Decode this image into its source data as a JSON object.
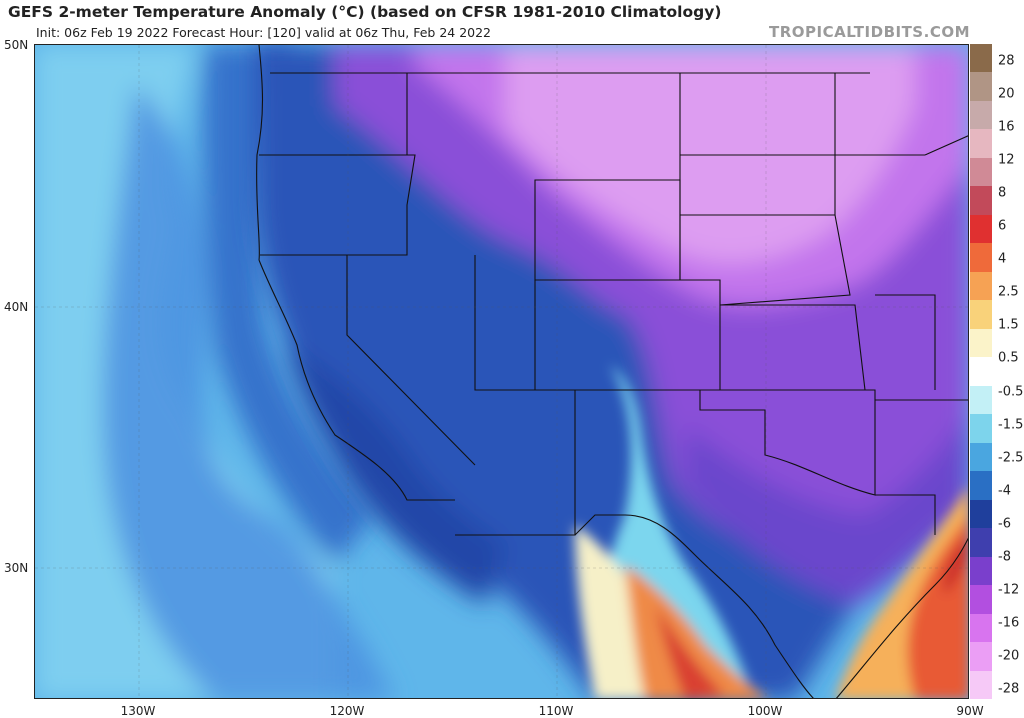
{
  "title": "GEFS 2-meter Temperature Anomaly (°C) (based on CFSR 1981-2010 Climatology)",
  "subtitle": "Init: 06z Feb 19 2022   Forecast Hour: [120]   valid at 06z Thu, Feb 24 2022",
  "credit": "TROPICALTIDBITS.COM",
  "lat_labels": [
    "50N",
    "40N",
    "30N"
  ],
  "lon_labels": [
    "130W",
    "120W",
    "110W",
    "100W",
    "90W"
  ],
  "colorbar": {
    "labels": [
      "28",
      "20",
      "16",
      "12",
      "8",
      "6",
      "4",
      "2.5",
      "1.5",
      "0.5",
      "-0.5",
      "-1.5",
      "-2.5",
      "-4",
      "-6",
      "-8",
      "-12",
      "-16",
      "-20",
      "-28"
    ],
    "colors": [
      "#8a6a4a",
      "#b09585",
      "#c7aaaa",
      "#e6b7c0",
      "#d08a96",
      "#c24a5a",
      "#e03030",
      "#ef6a3a",
      "#f6a254",
      "#f9d27a",
      "#fbf3c9",
      "#ffffff",
      "#c3f0f6",
      "#7dd4ec",
      "#4aa6e0",
      "#2a6fc4",
      "#1f3f9c",
      "#3f3fae",
      "#7a3fcc",
      "#b24fe0",
      "#d874ef",
      "#eb9ef5",
      "#f6c9f7"
    ]
  }
}
